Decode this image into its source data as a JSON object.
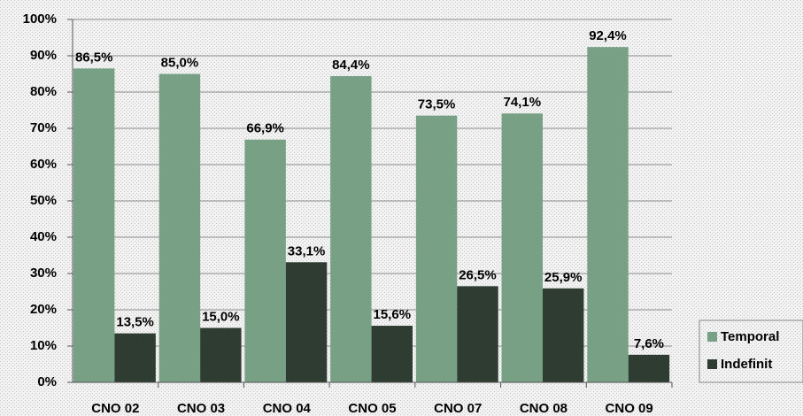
{
  "chart_data": {
    "type": "bar",
    "categories": [
      "CNO 02",
      "CNO 03",
      "CNO 04",
      "CNO 05",
      "CNO 07",
      "CNO 08",
      "CNO 09"
    ],
    "series": [
      {
        "name": "Temporal",
        "color": "#77a085",
        "values": [
          86.5,
          85.0,
          66.9,
          84.4,
          73.5,
          74.1,
          92.4
        ],
        "value_labels": [
          "86,5%",
          "85,0%",
          "66,9%",
          "84,4%",
          "73,5%",
          "74,1%",
          "92,4%"
        ]
      },
      {
        "name": "Indefinit",
        "color": "#2e3c32",
        "values": [
          13.5,
          15.0,
          33.1,
          15.6,
          26.5,
          25.9,
          7.6
        ],
        "value_labels": [
          "13,5%",
          "15,0%",
          "33,1%",
          "15,6%",
          "26,5%",
          "25,9%",
          "7,6%"
        ]
      }
    ],
    "ylim": [
      0,
      100
    ],
    "yticks": [
      {
        "value": 0,
        "label": "0%"
      },
      {
        "value": 10,
        "label": "10%"
      },
      {
        "value": 20,
        "label": "20%"
      },
      {
        "value": 30,
        "label": "30%"
      },
      {
        "value": 40,
        "label": "40%"
      },
      {
        "value": 50,
        "label": "50%"
      },
      {
        "value": 60,
        "label": "60%"
      },
      {
        "value": 70,
        "label": "70%"
      },
      {
        "value": 80,
        "label": "80%"
      },
      {
        "value": 90,
        "label": "90%"
      },
      {
        "value": 100,
        "label": "100%"
      }
    ],
    "grid": true,
    "legend": "right"
  }
}
